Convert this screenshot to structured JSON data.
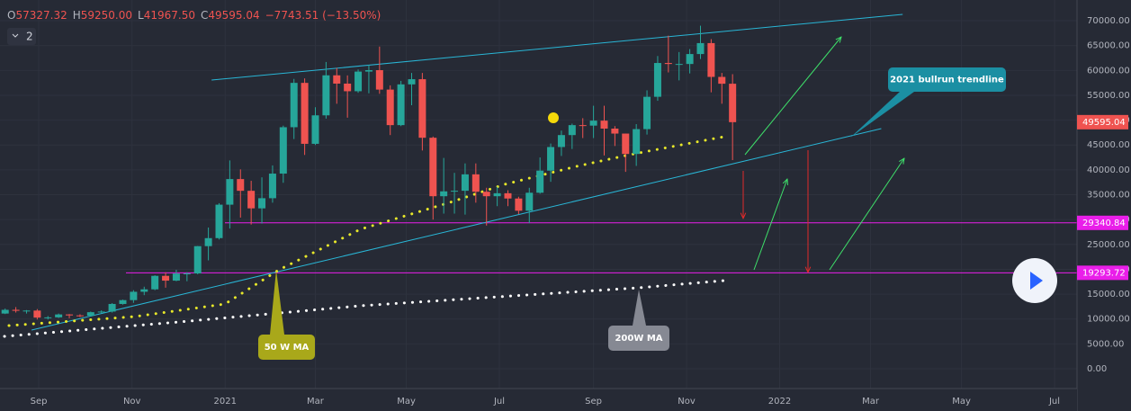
{
  "header": {
    "items": [
      {
        "key": "O",
        "value": "57327.32"
      },
      {
        "key": "H",
        "value": "59250.00"
      },
      {
        "key": "L",
        "value": "41967.50"
      },
      {
        "key": "C",
        "value": "49595.04"
      }
    ],
    "change": "−7743.51 (−13.50%)",
    "indicator_count": "2"
  },
  "chart_data": {
    "type": "candlestick",
    "open": [
      11100,
      11850,
      11650,
      11700,
      10280,
      10330,
      10920,
      10730,
      10660,
      11370,
      11500,
      13030,
      13800,
      15480,
      15970,
      18680,
      17720,
      19150,
      19170,
      24660,
      26270,
      33000,
      38150,
      35790,
      32260,
      34300,
      39250,
      48580,
      57500,
      45240,
      50970,
      59020,
      57350,
      55820,
      59770,
      60060,
      56150,
      49000,
      57200,
      58240,
      46460,
      34700,
      35680,
      35800,
      39100,
      35600,
      34700,
      35300,
      34240,
      31780,
      35400,
      39850,
      44600,
      47000,
      49000,
      48900,
      49900,
      48300,
      47300,
      43200,
      48200,
      54700,
      61500,
      61300,
      61300,
      63300,
      65500,
      58700,
      57327
    ],
    "high": [
      12100,
      12400,
      11800,
      12000,
      10600,
      11100,
      11000,
      10950,
      11500,
      11750,
      13200,
      13900,
      15800,
      16500,
      18800,
      19400,
      19900,
      19400,
      24700,
      28400,
      33300,
      41900,
      40100,
      37800,
      38500,
      40900,
      48900,
      58300,
      58400,
      52600,
      61700,
      60500,
      59000,
      60200,
      61100,
      64800,
      57000,
      57900,
      59500,
      59500,
      46700,
      42400,
      39400,
      41300,
      41300,
      36400,
      36600,
      35900,
      34600,
      36400,
      42500,
      45300,
      47900,
      49300,
      50400,
      52900,
      52900,
      48800,
      47300,
      49200,
      56000,
      62900,
      67000,
      63700,
      64300,
      69000,
      66300,
      59500,
      59250
    ],
    "low": [
      11000,
      11300,
      11100,
      9900,
      9900,
      10200,
      10150,
      10400,
      10550,
      11200,
      11300,
      12900,
      13250,
      14800,
      15800,
      16300,
      17600,
      17600,
      19000,
      21800,
      26000,
      28200,
      30400,
      29000,
      29200,
      33400,
      37400,
      46200,
      43000,
      45000,
      50300,
      53300,
      50500,
      55500,
      55400,
      55300,
      47000,
      48800,
      53000,
      43900,
      30000,
      31200,
      31200,
      31000,
      33400,
      28800,
      32700,
      32700,
      31100,
      29300,
      35200,
      37600,
      42800,
      44200,
      46400,
      46400,
      42900,
      44800,
      39600,
      40800,
      47100,
      53900,
      59600,
      58000,
      59400,
      62300,
      55600,
      53300,
      41967
    ],
    "close": [
      11850,
      11650,
      11700,
      10280,
      10330,
      10920,
      10730,
      10660,
      11370,
      11500,
      13030,
      13800,
      15480,
      15970,
      18680,
      17720,
      19150,
      19170,
      24660,
      26270,
      33000,
      38150,
      35790,
      32260,
      34300,
      39250,
      48580,
      57500,
      45240,
      50970,
      59020,
      57350,
      55820,
      59770,
      60060,
      56150,
      49000,
      57200,
      58240,
      46460,
      34700,
      35680,
      35800,
      39100,
      35600,
      34700,
      35300,
      34240,
      31780,
      35400,
      39850,
      44600,
      47000,
      49000,
      48900,
      49900,
      48300,
      47300,
      43200,
      48200,
      54700,
      61500,
      61300,
      61300,
      63300,
      65500,
      58700,
      57327,
      49595
    ],
    "up_color": "#26a69a",
    "down_color": "#ef5350",
    "xlim": [
      -0.48,
      100.2
    ],
    "xticks": [
      {
        "value": 3.14,
        "label": "Sep"
      },
      {
        "value": 11.86,
        "label": "Nov"
      },
      {
        "value": 20.57,
        "label": "2021"
      },
      {
        "value": 29,
        "label": "Mar"
      },
      {
        "value": 37.5,
        "label": "May"
      },
      {
        "value": 46.2,
        "label": "Jul"
      },
      {
        "value": 55,
        "label": "Sep"
      },
      {
        "value": 63.7,
        "label": "Nov"
      },
      {
        "value": 72.4,
        "label": "2022"
      },
      {
        "value": 80.9,
        "label": "Mar"
      },
      {
        "value": 89.4,
        "label": "May"
      },
      {
        "value": 98.1,
        "label": "Jul"
      }
    ],
    "ylim": [
      -3980,
      74170
    ],
    "yticks": [
      {
        "value": 0,
        "label": "0.00"
      },
      {
        "value": 5000,
        "label": "5000.00"
      },
      {
        "value": 10000,
        "label": "10000.00"
      },
      {
        "value": 15000,
        "label": "15000.00"
      },
      {
        "value": 20000,
        "label": "20000.00"
      },
      {
        "value": 25000,
        "label": "25000.00"
      },
      {
        "value": 30000,
        "label": "30000.00"
      },
      {
        "value": 35000,
        "label": "35000.00"
      },
      {
        "value": 40000,
        "label": "40000.00"
      },
      {
        "value": 45000,
        "label": "45000.00"
      },
      {
        "value": 50000,
        "label": "50000.00"
      },
      {
        "value": 55000,
        "label": "55000.00"
      },
      {
        "value": 60000,
        "label": "60000.00"
      },
      {
        "value": 65000,
        "label": "65000.00"
      },
      {
        "value": 70000,
        "label": "70000.00"
      }
    ],
    "grid": true,
    "last_price": {
      "value": 49595.04,
      "color": "#ef5350"
    },
    "horizontal_lines": [
      {
        "value": 29340.84,
        "color": "#e91ee9"
      },
      {
        "value": 19293.72,
        "color": "#e91ee9"
      }
    ],
    "trendlines": [
      {
        "x": [
          19.3,
          83.9
        ],
        "values": [
          58060,
          71270
        ],
        "color": "#29b6d6"
      },
      {
        "x": [
          2.47,
          81.9
        ],
        "values": [
          7780,
          48300
        ],
        "color": "#29b6d6"
      }
    ],
    "moving_averages": [
      {
        "x": [
          0.36,
          12.14,
          20.55,
          25.6,
          33.2,
          41.6,
          46.7,
          53.4,
          58.4,
          67.2
        ],
        "values": [
          8680,
          10490,
          13020,
          19900,
          28040,
          33470,
          37090,
          40700,
          43060,
          46670
        ],
        "color": "#e8e82a"
      },
      {
        "x": [
          -0.06,
          16.3,
          33.2,
          50,
          59.2,
          67.2
        ],
        "values": [
          6510,
          9410,
          12660,
          15010,
          16280,
          17730
        ],
        "color": "#ffffff"
      }
    ],
    "annotations": [
      {
        "text": "2021 bullrun trendline",
        "color": "#1b8fa3"
      },
      {
        "text": "50 W MA",
        "color": "#a9a81a"
      },
      {
        "text": "200W MA",
        "color": "#868993"
      }
    ]
  }
}
